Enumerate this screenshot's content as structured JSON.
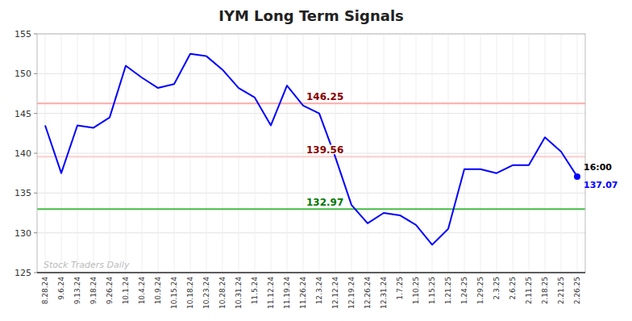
{
  "chart_data": {
    "type": "line",
    "title": "IYM Long Term Signals",
    "categories": [
      "8.28.24",
      "9.6.24",
      "9.13.24",
      "9.18.24",
      "9.26.24",
      "10.1.24",
      "10.4.24",
      "10.9.24",
      "10.15.24",
      "10.18.24",
      "10.23.24",
      "10.28.24",
      "10.31.24",
      "11.5.24",
      "11.12.24",
      "11.19.24",
      "11.26.24",
      "12.3.24",
      "12.12.24",
      "12.19.24",
      "12.26.24",
      "12.31.24",
      "1.7.25",
      "1.10.25",
      "1.15.25",
      "1.21.25",
      "1.24.25",
      "1.29.25",
      "2.3.25",
      "2.6.25",
      "2.11.25",
      "2.18.25",
      "2.21.25",
      "2.26.25"
    ],
    "values": [
      143.5,
      137.5,
      143.5,
      143.2,
      144.5,
      151.0,
      149.5,
      148.2,
      148.7,
      152.5,
      152.2,
      150.5,
      148.2,
      147.0,
      143.5,
      148.5,
      146.0,
      145.0,
      139.5,
      133.5,
      131.2,
      132.5,
      132.2,
      131.0,
      128.5,
      130.5,
      138.0,
      138.0,
      137.5,
      138.5,
      138.5,
      142.0,
      140.2,
      137.07
    ],
    "color": "blue",
    "ylim": [
      125,
      155
    ],
    "yticks": [
      125,
      130,
      135,
      140,
      145,
      150,
      155
    ],
    "grid": true,
    "reference_lines": [
      {
        "value": 146.25,
        "label": "146.25",
        "color": "#ffaaaa",
        "label_color": "#880000"
      },
      {
        "value": 139.56,
        "label": "139.56",
        "color": "#ffcccc",
        "label_color": "#880000"
      },
      {
        "value": 132.97,
        "label": "132.97",
        "color": "#44bb44",
        "label_color": "#007700"
      }
    ],
    "annotations": [
      {
        "text": "16:00",
        "color": "black"
      },
      {
        "text": "137.07",
        "color": "blue"
      }
    ],
    "watermark": "Stock Traders Daily",
    "watermark_color": "#bbbbbb"
  }
}
